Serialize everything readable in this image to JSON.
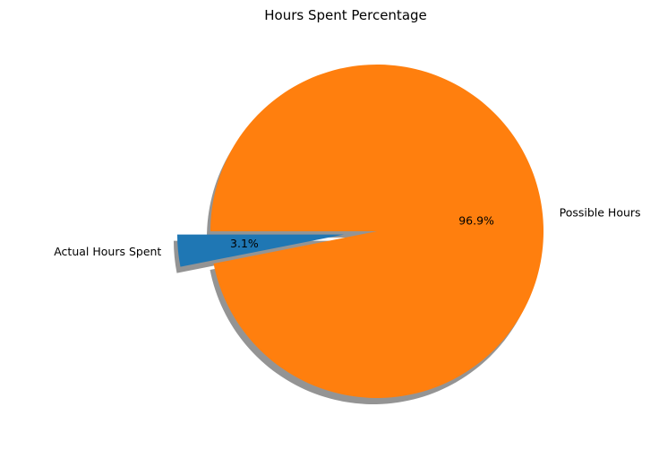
{
  "chart_data": {
    "type": "pie",
    "title": "Hours Spent Percentage",
    "slices": [
      {
        "label": "Actual Hours Spent",
        "value": 3.1,
        "pct_label": "3.1%",
        "color": "#1f77b4",
        "exploded": true
      },
      {
        "label": "Possible Hours",
        "value": 96.9,
        "pct_label": "96.9%",
        "color": "#ff7f0e",
        "exploded": false
      }
    ],
    "shadow": true,
    "start_angle_deg": 180
  }
}
